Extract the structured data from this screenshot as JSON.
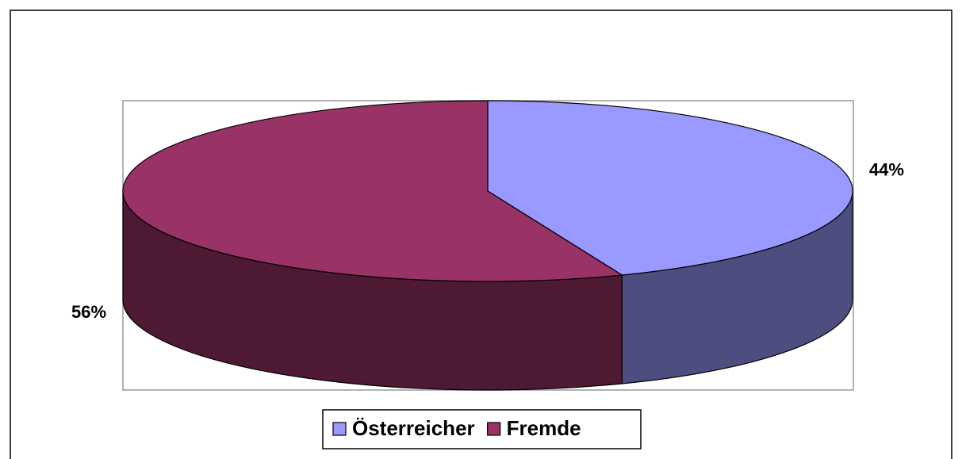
{
  "chart_data": {
    "type": "pie",
    "three_d": true,
    "categories": [
      "Österreicher",
      "Fremde"
    ],
    "values": [
      44,
      56
    ],
    "value_labels": [
      "44%",
      "56%"
    ],
    "colors": [
      "#9999ff",
      "#993366"
    ],
    "side_colors": [
      "#4d4d80",
      "#4d1933"
    ],
    "legend": "bottom"
  }
}
